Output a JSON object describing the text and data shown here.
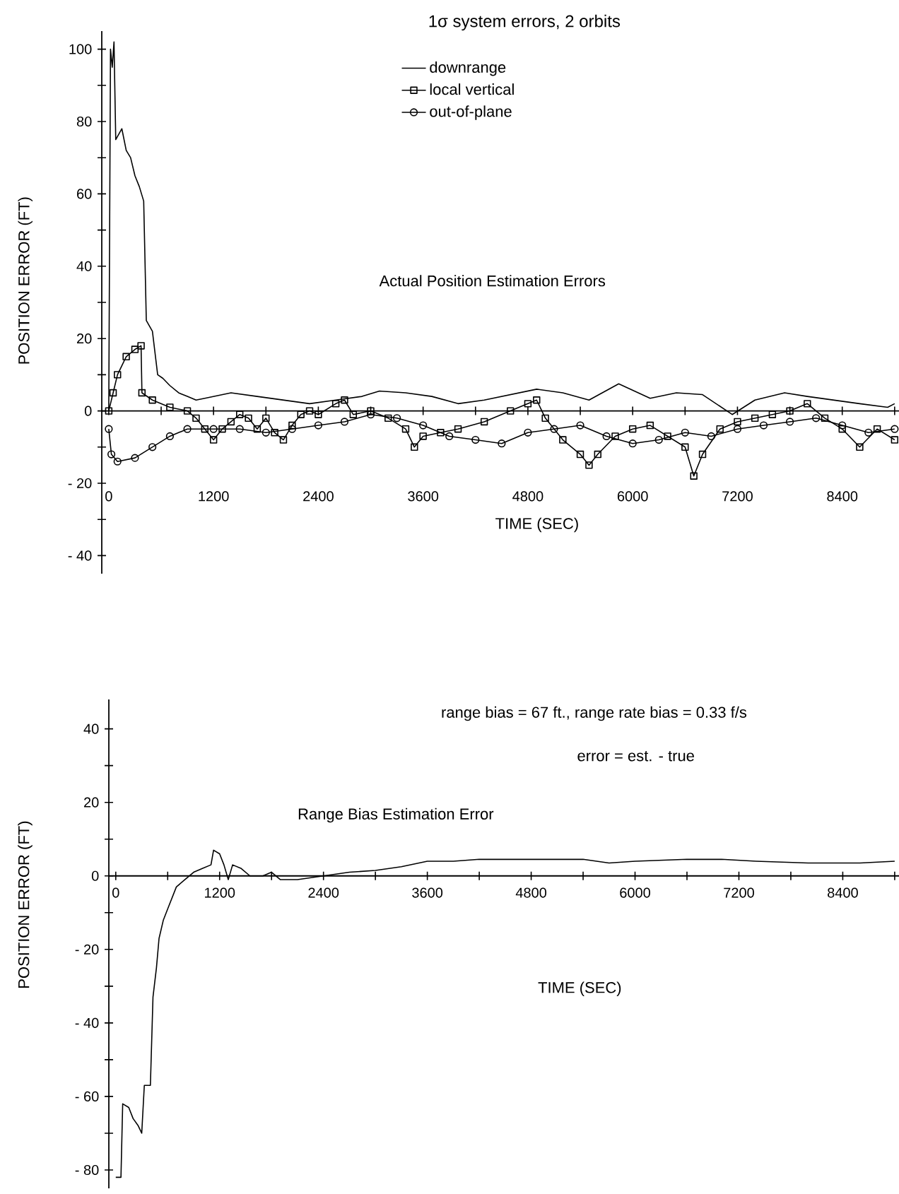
{
  "chart_data": [
    {
      "type": "line",
      "title": "1σ system errors, 2 orbits",
      "xlabel": "TIME (SEC)",
      "ylabel": "POSITION ERROR (FT)",
      "legend": "top",
      "line_style": "solid",
      "annotations": [
        "Actual Position Estimation Errors"
      ],
      "xlim": [
        -80,
        9050
      ],
      "ylim": [
        -45,
        105
      ],
      "xticks": [
        0,
        {
          "value": 600,
          "label": null
        },
        1200,
        {
          "value": 1800,
          "label": null
        },
        2400,
        {
          "value": 3000,
          "label": null
        },
        3600,
        {
          "value": 4200,
          "label": null
        },
        4800,
        {
          "value": 5400,
          "label": null
        },
        6000,
        {
          "value": 6600,
          "label": null
        },
        7200,
        {
          "value": 7800,
          "label": null
        },
        8400,
        {
          "value": 9000,
          "label": null
        }
      ],
      "yticks": [
        {
          "value": -40,
          "label": "- 40"
        },
        {
          "value": -30,
          "label": null
        },
        {
          "value": -20,
          "label": "- 20"
        },
        {
          "value": -10,
          "label": null
        },
        0,
        {
          "value": 10,
          "label": null
        },
        20,
        {
          "value": 30,
          "label": null
        },
        40,
        {
          "value": 50,
          "label": null
        },
        60,
        {
          "value": 70,
          "label": null
        },
        80,
        {
          "value": 90,
          "label": null
        },
        100
      ],
      "series": [
        {
          "name": "downrange",
          "color": "#000000",
          "marker": "none",
          "x": [
            0,
            20,
            40,
            60,
            80,
            150,
            200,
            250,
            300,
            350,
            400,
            430,
            500,
            560,
            620,
            700,
            800,
            900,
            1000,
            1100,
            1400,
            1700,
            2000,
            2300,
            2600,
            2900,
            3100,
            3400,
            3700,
            4000,
            4300,
            4600,
            4900,
            5200,
            5500,
            5840,
            6200,
            6500,
            6800,
            7140,
            7400,
            7740,
            8000,
            8300,
            8600,
            8920,
            9000
          ],
          "values": [
            0,
            100,
            95,
            102,
            75,
            78,
            72,
            70,
            65,
            62,
            58,
            25,
            22,
            10,
            9,
            7,
            5,
            4,
            3,
            3.5,
            5,
            4,
            3,
            2,
            3,
            4,
            5.5,
            5,
            4,
            2,
            3,
            4.5,
            6,
            5,
            3,
            7.5,
            3.5,
            5,
            4.5,
            -1,
            3,
            5,
            4,
            3,
            2,
            1,
            2
          ]
        },
        {
          "name": "local vertical",
          "color": "#000000",
          "marker": "square",
          "x": [
            0,
            50,
            100,
            200,
            300,
            370,
            380,
            500,
            700,
            900,
            1000,
            1100,
            1200,
            1300,
            1400,
            1500,
            1600,
            1700,
            1800,
            1900,
            2000,
            2100,
            2200,
            2300,
            2400,
            2600,
            2700,
            2800,
            3000,
            3200,
            3400,
            3500,
            3600,
            3800,
            4000,
            4300,
            4600,
            4800,
            4900,
            5000,
            5200,
            5400,
            5500,
            5600,
            5800,
            6000,
            6200,
            6400,
            6600,
            6700,
            6800,
            7000,
            7200,
            7400,
            7600,
            7800,
            8000,
            8200,
            8400,
            8600,
            8800,
            9000
          ],
          "values": [
            0,
            5,
            10,
            15,
            17,
            18,
            5,
            3,
            1,
            0,
            -2,
            -5,
            -8,
            -5,
            -3,
            -1,
            -2,
            -5,
            -2,
            -6,
            -8,
            -4,
            -1,
            0,
            -1,
            2,
            3,
            -1,
            0,
            -2,
            -5,
            -10,
            -7,
            -6,
            -5,
            -3,
            0,
            2,
            3,
            -2,
            -8,
            -12,
            -15,
            -12,
            -7,
            -5,
            -4,
            -7,
            -10,
            -18,
            -12,
            -5,
            -3,
            -2,
            -1,
            0,
            2,
            -2,
            -5,
            -10,
            -5,
            -8
          ]
        },
        {
          "name": "out-of-plane",
          "color": "#000000",
          "marker": "circle",
          "x": [
            0,
            30,
            100,
            300,
            500,
            700,
            900,
            1200,
            1500,
            1800,
            2100,
            2400,
            2700,
            3000,
            3300,
            3600,
            3900,
            4200,
            4500,
            4800,
            5100,
            5400,
            5700,
            6000,
            6300,
            6600,
            6900,
            7200,
            7500,
            7800,
            8100,
            8400,
            8700,
            9000
          ],
          "values": [
            -5,
            -12,
            -14,
            -13,
            -10,
            -7,
            -5,
            -5,
            -5,
            -6,
            -5,
            -4,
            -3,
            -1,
            -2,
            -4,
            -7,
            -8,
            -9,
            -6,
            -5,
            -4,
            -7,
            -9,
            -8,
            -6,
            -7,
            -5,
            -4,
            -3,
            -2,
            -4,
            -6,
            -5
          ]
        }
      ]
    },
    {
      "type": "line",
      "xlabel": "TIME (SEC)",
      "ylabel": "POSITION ERROR (FT)",
      "line_style": "solid",
      "annotations": [
        "range bias = 67 ft., range rate bias = 0.33 f/s",
        "error = est. - true",
        "Range Bias Estimation Error"
      ],
      "xlim": [
        -80,
        9050
      ],
      "ylim": [
        -85,
        48
      ],
      "xticks": [
        0,
        {
          "value": 600,
          "label": null
        },
        1200,
        {
          "value": 1800,
          "label": null
        },
        2400,
        {
          "value": 3000,
          "label": null
        },
        3600,
        {
          "value": 4200,
          "label": null
        },
        4800,
        {
          "value": 5400,
          "label": null
        },
        6000,
        {
          "value": 6600,
          "label": null
        },
        7200,
        {
          "value": 7800,
          "label": null
        },
        8400,
        {
          "value": 9000,
          "label": null
        }
      ],
      "yticks": [
        {
          "value": -80,
          "label": "- 80"
        },
        {
          "value": -70,
          "label": null
        },
        {
          "value": -60,
          "label": "- 60"
        },
        {
          "value": -50,
          "label": null
        },
        {
          "value": -40,
          "label": "- 40"
        },
        {
          "value": -30,
          "label": null
        },
        {
          "value": -20,
          "label": "- 20"
        },
        {
          "value": -10,
          "label": null
        },
        0,
        {
          "value": 10,
          "label": null
        },
        20,
        {
          "value": 30,
          "label": null
        },
        40
      ],
      "series": [
        {
          "color": "#000000",
          "marker": "none",
          "x": [
            0,
            60,
            80,
            150,
            200,
            260,
            300,
            330,
            400,
            430,
            470,
            500,
            550,
            600,
            650,
            700,
            800,
            900,
            1000,
            1100,
            1130,
            1200,
            1250,
            1300,
            1350,
            1450,
            1550,
            1700,
            1800,
            1900,
            2100,
            2400,
            2700,
            3000,
            3300,
            3600,
            3900,
            4200,
            4800,
            5400,
            5700,
            6000,
            6600,
            7000,
            7400,
            8000,
            8600,
            9000
          ],
          "values": [
            -82,
            -82,
            -62,
            -63,
            -66,
            -68,
            -70,
            -57,
            -57,
            -33,
            -25,
            -17,
            -12,
            -9,
            -6,
            -3,
            -1,
            1,
            2,
            3,
            7,
            6,
            3,
            -1,
            3,
            2,
            0,
            0,
            1,
            -1,
            -1,
            0,
            1,
            1.5,
            2.5,
            4,
            4,
            4.5,
            4.5,
            4.5,
            3.5,
            4,
            4.5,
            4.5,
            4,
            3.5,
            3.5,
            4
          ]
        }
      ]
    }
  ]
}
